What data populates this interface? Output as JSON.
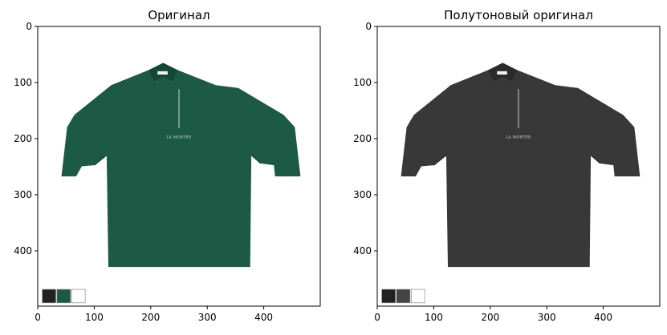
{
  "panels": [
    {
      "title": "Оригинал",
      "shirt_color": "#1c5a46",
      "shirt_shadow": "#154636",
      "logo_text": "LA MONTÉE",
      "swatches": [
        "#222222",
        "#1c5a46",
        "#ffffff"
      ],
      "axes": {
        "x_ticks": [
          "0",
          "100",
          "200",
          "300",
          "400"
        ],
        "y_ticks": [
          "0",
          "100",
          "200",
          "300",
          "400"
        ]
      }
    },
    {
      "title": "Полутоновый оригинал",
      "shirt_color": "#383838",
      "shirt_shadow": "#2a2a2a",
      "logo_text": "LA MONTÉE",
      "swatches": [
        "#222222",
        "#444444",
        "#ffffff"
      ],
      "axes": {
        "x_ticks": [
          "0",
          "100",
          "200",
          "300",
          "400"
        ],
        "y_ticks": [
          "0",
          "100",
          "200",
          "300",
          "400"
        ]
      }
    }
  ]
}
